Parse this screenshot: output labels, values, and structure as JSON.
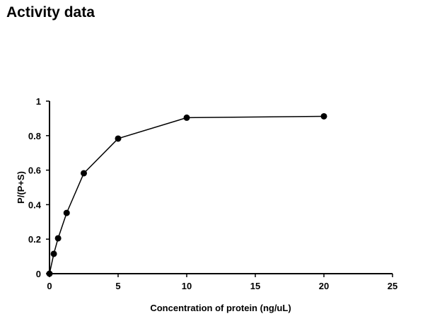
{
  "page_title": "Activity data",
  "chart_data": {
    "type": "line",
    "title": "Activity data",
    "xlabel": "Concentration of protein (ng/uL)",
    "ylabel": "P/(P+S)",
    "xlim": [
      0,
      25
    ],
    "ylim": [
      0,
      1
    ],
    "xticks": [
      0,
      5,
      10,
      15,
      20,
      25
    ],
    "yticks": [
      0,
      0.2,
      0.4,
      0.6,
      0.8,
      1
    ],
    "ytick_labels": [
      "0",
      "0.2",
      "0.4",
      "0.6",
      "0.8",
      "1"
    ],
    "grid": false,
    "legend": "none",
    "series": [
      {
        "name": "Activity",
        "color": "#000000",
        "x": [
          0,
          0.3125,
          0.625,
          1.25,
          2.5,
          5,
          10,
          20
        ],
        "y": [
          0,
          0.115,
          0.205,
          0.352,
          0.582,
          0.783,
          0.904,
          0.912
        ]
      }
    ]
  }
}
